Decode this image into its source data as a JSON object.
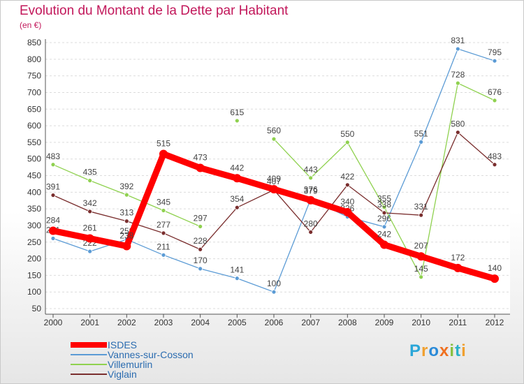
{
  "title": "Evolution du Montant de la Dette par Habitant",
  "unit": "(en €)",
  "logo_text": "Proxiti",
  "chart_data": {
    "type": "line",
    "title": "Evolution du Montant de la Dette par Habitant",
    "ylabel": "(en €)",
    "ylim": [
      50,
      850
    ],
    "yticks": [
      50,
      100,
      150,
      200,
      250,
      300,
      350,
      400,
      450,
      500,
      550,
      600,
      650,
      700,
      750,
      800,
      850
    ],
    "grid": true,
    "legend_position": "bottom-left",
    "categories": [
      "2000",
      "2001",
      "2002",
      "2003",
      "2004",
      "2005",
      "2006",
      "2007",
      "2008",
      "2009",
      "2010",
      "2011",
      "2012"
    ],
    "series": [
      {
        "name": "ISDES",
        "color": "#ff0000",
        "values": [
          284,
          261,
          238,
          515,
          473,
          442,
          409,
          376,
          340,
          242,
          207,
          172,
          140
        ]
      },
      {
        "name": "Vannes-sur-Cosson",
        "color": "#5b9bd5",
        "values": [
          261,
          222,
          258,
          211,
          170,
          141,
          100,
          379,
          326,
          296,
          551,
          831,
          795
        ]
      },
      {
        "name": "Villemurlin",
        "color": "#8fd14f",
        "values": [
          483,
          435,
          392,
          345,
          297,
          null,
          560,
          443,
          550,
          355,
          145,
          728,
          676
        ],
        "extra_points": [
          {
            "x": "2005",
            "value": 615
          }
        ]
      },
      {
        "name": "Viglain",
        "color": "#7a2e2e",
        "values": [
          391,
          342,
          313,
          277,
          228,
          354,
          407,
          280,
          422,
          338,
          331,
          580,
          483
        ]
      }
    ]
  }
}
